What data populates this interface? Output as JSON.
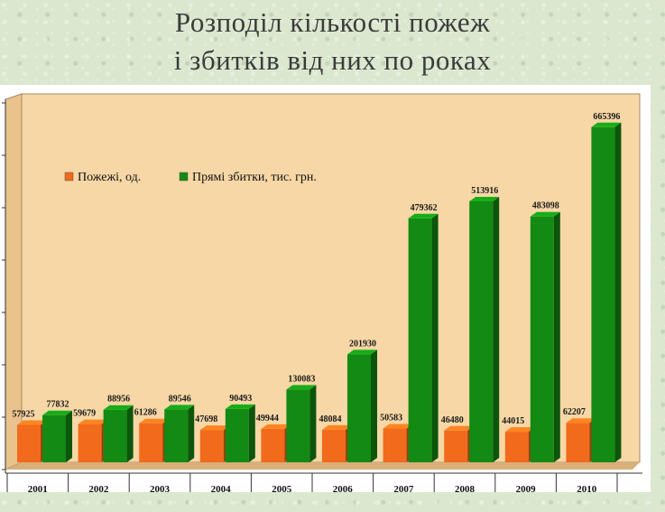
{
  "title": {
    "line1": "Розподіл кількості пожеж",
    "line2": "і збитків від них по роках"
  },
  "colors": {
    "fires": "#f26a1b",
    "damage": "#138a13",
    "plot_bg": "#f6d7a5"
  },
  "chart_data": {
    "type": "bar",
    "title": "Розподіл кількості пожеж і збитків від них по роках",
    "categories": [
      "2001",
      "2002",
      "2003",
      "2004",
      "2005",
      "2006",
      "2007",
      "2008",
      "2009",
      "2010"
    ],
    "series": [
      {
        "name": "Пожежі, од.",
        "values": [
          57925,
          59679,
          61286,
          47698,
          49944,
          48084,
          50583,
          46480,
          44015,
          62207
        ],
        "labels": [
          "57925",
          "59679",
          "61286",
          "47698",
          "49944",
          "48084",
          "50583",
          "46480",
          "44015",
          "62207"
        ]
      },
      {
        "name": "Прямі збитки, тис. грн.",
        "values": [
          77832,
          88956,
          89546,
          90493,
          130083,
          201930,
          479362,
          513916,
          483098,
          665396
        ],
        "labels": [
          "77832",
          "88956",
          "89546",
          "90493",
          "130083",
          "201930",
          "479362",
          "513916",
          "483098",
          "665396"
        ]
      }
    ],
    "ylim": [
      0,
      700000
    ],
    "grid": false,
    "legend_position": "top-left"
  }
}
